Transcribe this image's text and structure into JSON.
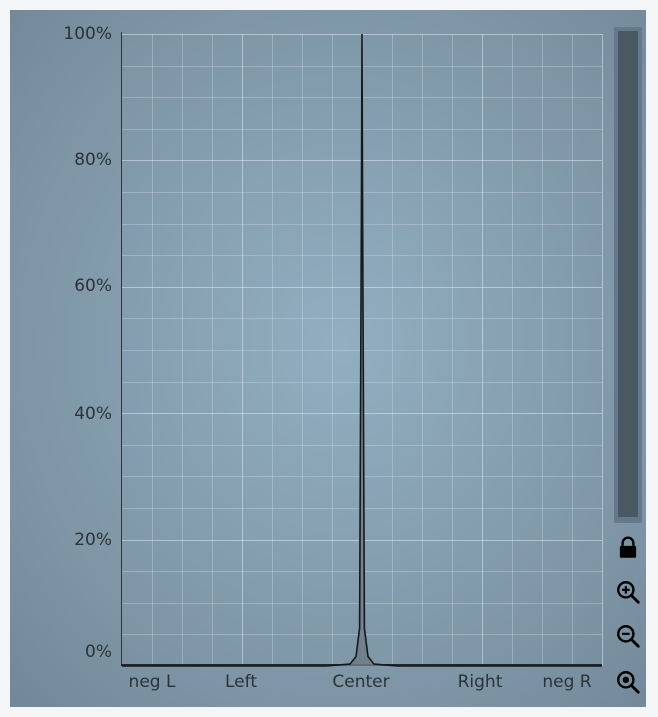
{
  "chart_data": {
    "type": "area",
    "title": "",
    "xlabel": "",
    "ylabel": "",
    "y_ticks": [
      "100%",
      "80%",
      "60%",
      "40%",
      "20%",
      "0%"
    ],
    "x_ticks": [
      "neg L",
      "Left",
      "Center",
      "Right",
      "neg R"
    ],
    "ylim": [
      0,
      100
    ],
    "xlim": [
      -2,
      2
    ],
    "grid": true,
    "series": [
      {
        "x": [
          -2,
          -0.3,
          -0.1,
          -0.05,
          -0.02,
          -0.005,
          0,
          0.005,
          0.02,
          0.05,
          0.1,
          0.3,
          2
        ],
        "values": [
          0,
          0,
          0.3,
          1.5,
          6,
          72,
          100,
          72,
          6,
          1.5,
          0.3,
          0,
          0
        ]
      }
    ],
    "colors": {
      "fill": "#6d7a84",
      "line": "#15191c"
    }
  },
  "controls": {
    "lock_icon": "lock-icon",
    "zoom_in_icon": "zoom-in-icon",
    "zoom_out_icon": "zoom-out-icon",
    "zoom_reset_icon": "zoom-reset-icon"
  }
}
